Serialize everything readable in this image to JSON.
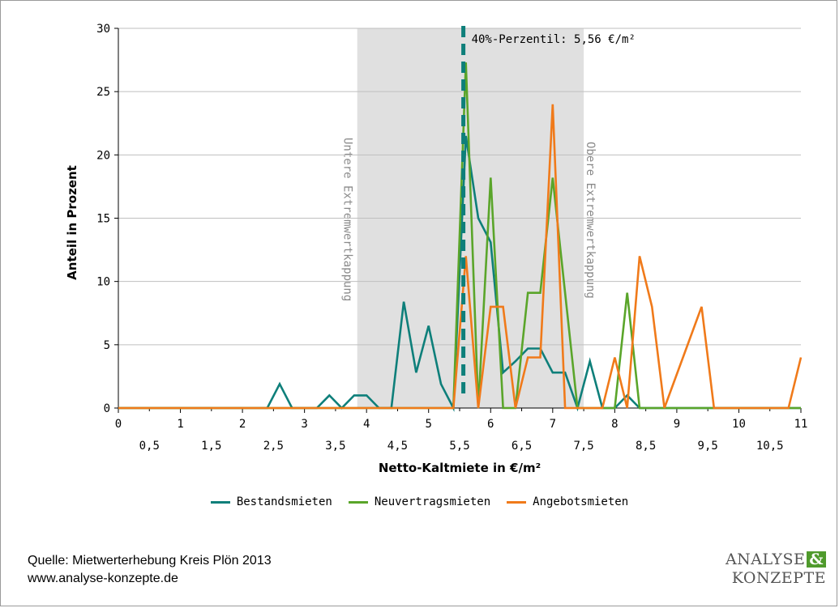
{
  "colors": {
    "bestand": "#0e7f7a",
    "neuvertrag": "#5aa52a",
    "angebot": "#f07a1a",
    "band": "#e0e0e0",
    "grid": "#bfbfbf",
    "marker": "#0e7f7a",
    "logo_amp_bg": "#4f9a2c"
  },
  "chart_data": {
    "type": "line",
    "xlabel": "Netto-Kaltmiete in €/m²",
    "ylabel": "Anteil in Prozent",
    "xlim": [
      0,
      11
    ],
    "ylim": [
      0,
      30
    ],
    "y_ticks": [
      "0",
      "5",
      "10",
      "15",
      "20",
      "25",
      "30"
    ],
    "x_ticks_major": [
      "0",
      "1",
      "2",
      "3",
      "4",
      "5",
      "6",
      "7",
      "8",
      "9",
      "10",
      "11"
    ],
    "x_ticks_half": [
      "0,5",
      "1,5",
      "2,5",
      "3,5",
      "4,5",
      "5,5",
      "6,5",
      "7,5",
      "8,5",
      "9,5",
      "10,5"
    ],
    "grid": "horizontal",
    "legend_position": "bottom",
    "shaded_band": {
      "x_from": 3.85,
      "x_to": 7.5
    },
    "band_labels": {
      "lower": "Untere Extremwertkappung",
      "upper": "Obere Extremwertkappung"
    },
    "percentile_marker": {
      "x": 5.56,
      "label": "40%-Perzentil: 5,56 €/m²"
    },
    "series": [
      {
        "name": "Bestandsmieten",
        "x": [
          0,
          2.4,
          2.6,
          2.8,
          3.2,
          3.4,
          3.6,
          3.8,
          4.0,
          4.2,
          4.4,
          4.6,
          4.8,
          5.0,
          5.2,
          5.4,
          5.6,
          5.8,
          6.0,
          6.2,
          6.4,
          6.6,
          6.8,
          7.0,
          7.2,
          7.4,
          7.6,
          7.8,
          8.0,
          8.2,
          8.4,
          8.6,
          11
        ],
        "y": [
          0,
          0,
          1.9,
          0,
          0,
          1.0,
          0,
          1.0,
          1.0,
          0,
          0,
          8.4,
          2.8,
          6.5,
          1.9,
          0,
          21.5,
          15.0,
          13.1,
          2.8,
          3.7,
          4.7,
          4.7,
          2.8,
          2.8,
          0,
          3.7,
          0,
          0,
          1.0,
          0,
          0,
          0
        ]
      },
      {
        "name": "Neuvertragsmieten",
        "x": [
          0,
          5.4,
          5.6,
          5.8,
          6.0,
          6.2,
          6.4,
          6.6,
          6.8,
          7.0,
          7.2,
          7.4,
          7.6,
          8.0,
          8.2,
          8.4,
          11
        ],
        "y": [
          0,
          0,
          27.3,
          0,
          18.2,
          0,
          0,
          9.1,
          9.1,
          18.2,
          9.1,
          0,
          0,
          0,
          9.1,
          0,
          0
        ]
      },
      {
        "name": "Angebotsmieten",
        "x": [
          0,
          5.4,
          5.6,
          5.8,
          6.0,
          6.2,
          6.4,
          6.6,
          6.8,
          7.0,
          7.2,
          7.4,
          7.8,
          8.0,
          8.2,
          8.4,
          8.6,
          8.8,
          9.4,
          9.6,
          10.8,
          11
        ],
        "y": [
          0,
          0,
          12.0,
          0,
          8.0,
          8.0,
          0,
          4.0,
          4.0,
          24.0,
          0,
          0,
          0,
          4.0,
          0,
          12.0,
          8.0,
          0,
          8.0,
          0,
          0,
          4.0
        ]
      }
    ]
  },
  "legend": {
    "bestand": "Bestandsmieten",
    "neuvertrag": "Neuvertragsmieten",
    "angebot": "Angebotsmieten"
  },
  "source": {
    "line1": "Quelle: Mietwerterhebung Kreis Plön 2013",
    "line2": "www.analyse-konzepte.de"
  },
  "logo": {
    "word1": "ANALYSE",
    "amp": "&",
    "word2": "KONZEPTE"
  }
}
